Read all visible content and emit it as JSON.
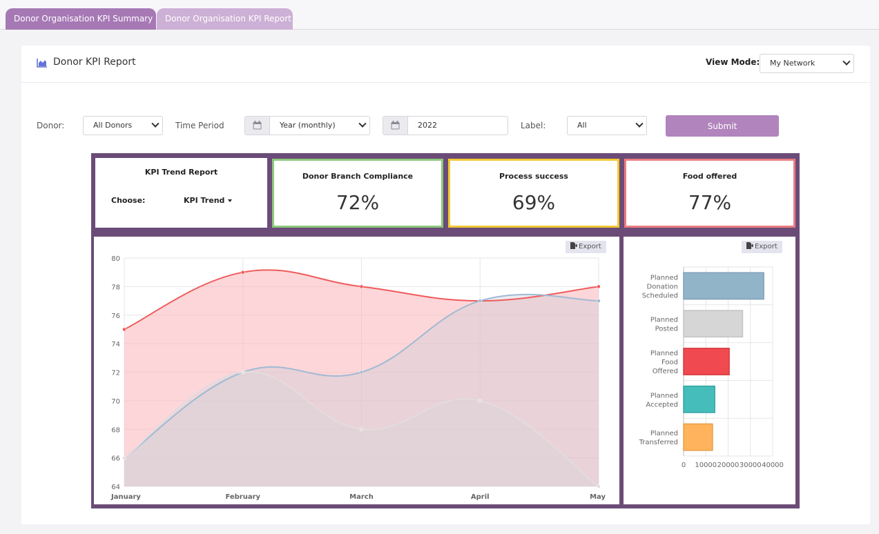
{
  "tabs": [
    {
      "label": "Donor Organisation KPI Summary",
      "active": true
    },
    {
      "label": "Donor Organisation KPI Report",
      "active": false
    }
  ],
  "header": {
    "title": "Donor KPI Report",
    "title_icon": "area-chart-icon",
    "view_mode_label": "View Mode:",
    "view_mode_value": "My Network"
  },
  "filters": {
    "donor_label": "Donor:",
    "donor_value": "All Donors",
    "time_period_label": "Time Period",
    "time_period_value": "Year (monthly)",
    "year_value": "2022",
    "label_label": "Label:",
    "label_value": "All",
    "submit_label": "Submit",
    "calendar_icon": "calendar-icon"
  },
  "kpi": {
    "trend_title": "KPI Trend Report",
    "choose_label": "Choose:",
    "choose_value": "KPI Trend",
    "cards": [
      {
        "title": "Donor Branch Compliance",
        "value": "72%",
        "border": "#8cc97a"
      },
      {
        "title": "Process success",
        "value": "69%",
        "border": "#f2c933"
      },
      {
        "title": "Food offered",
        "value": "77%",
        "border": "#ec7c80"
      }
    ]
  },
  "export_label": "Export",
  "chart_data": [
    {
      "type": "area",
      "x": [
        "January",
        "February",
        "March",
        "April",
        "May"
      ],
      "ylim": [
        64,
        80
      ],
      "yticks": [
        "64",
        "66",
        "68",
        "70",
        "72",
        "74",
        "76",
        "78",
        "80"
      ],
      "grid": true,
      "series": [
        {
          "values": [
            75,
            79,
            78,
            77,
            78
          ],
          "color": "#ef5b5b",
          "fill": "rgba(250,180,185,0.55)"
        },
        {
          "values": [
            66,
            72,
            72,
            77,
            77
          ],
          "color": "#9fbad3",
          "fill": "rgba(205,205,215,0.4)"
        },
        {
          "values": [
            66,
            72,
            68,
            70,
            64
          ],
          "color": "#e3dcdf",
          "fill": "rgba(215,215,220,0.35)"
        }
      ]
    },
    {
      "type": "bar",
      "orientation": "horizontal",
      "categories": [
        [
          "Planned",
          "Donation",
          "Scheduled"
        ],
        [
          "Planned",
          "Posted"
        ],
        [
          "Planned",
          "Food",
          "Offered"
        ],
        [
          "Planned",
          "Accepted"
        ],
        [
          "Planned",
          "Transferred"
        ]
      ],
      "values": [
        36000,
        26500,
        20500,
        14000,
        13000
      ],
      "colors": [
        "#91b4c9",
        "#d6d6d6",
        "#f04a50",
        "#44bdbb",
        "#feb35c"
      ],
      "borders": [
        "#7ea0b6",
        "#c3c3c3",
        "#d63a40",
        "#35a6a4",
        "#e89e48"
      ],
      "xlim": [
        0,
        40000
      ],
      "xticks": [
        "0",
        "10000",
        "20000",
        "30000",
        "40000"
      ],
      "grid": true
    }
  ]
}
